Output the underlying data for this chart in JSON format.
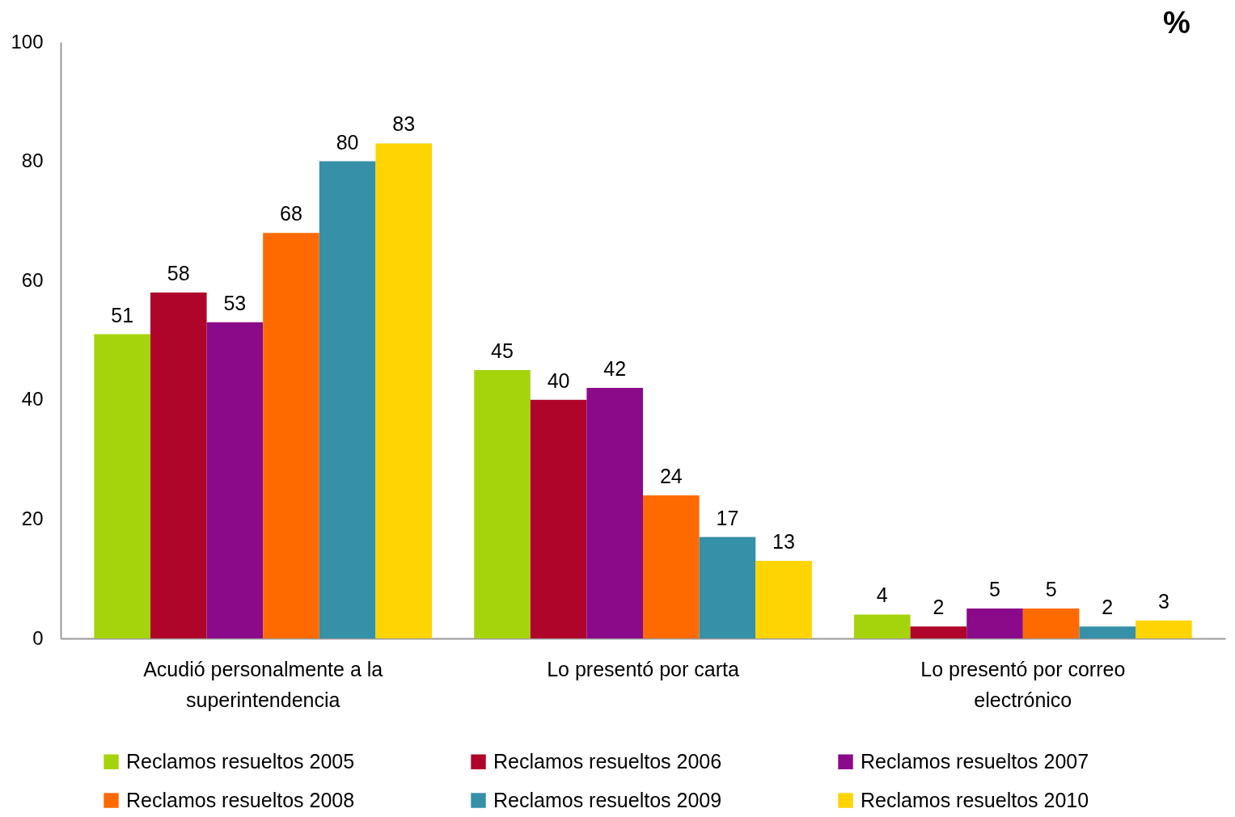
{
  "chart_data": {
    "type": "bar",
    "categories": [
      "Acudió personalmente a la superintendencia",
      "Lo presentó por carta",
      "Lo presentó por correo electrónico"
    ],
    "series": [
      {
        "name": "Reclamos resueltos 2005",
        "color": "#a6d40c",
        "values": [
          51,
          45,
          4
        ]
      },
      {
        "name": "Reclamos resueltos 2006",
        "color": "#b0052a",
        "values": [
          58,
          40,
          2
        ]
      },
      {
        "name": "Reclamos resueltos 2007",
        "color": "#8a0a8a",
        "values": [
          53,
          42,
          5
        ]
      },
      {
        "name": "Reclamos resueltos 2008",
        "color": "#ff6a00",
        "values": [
          68,
          24,
          5
        ]
      },
      {
        "name": "Reclamos resueltos 2009",
        "color": "#3590a8",
        "values": [
          80,
          17,
          2
        ]
      },
      {
        "name": "Reclamos resueltos 2010",
        "color": "#ffd400",
        "values": [
          83,
          13,
          3
        ]
      }
    ],
    "ylim": [
      0,
      100
    ],
    "yticks": [
      0,
      20,
      40,
      60,
      80,
      100
    ],
    "data_labels": true,
    "legend": "bottom",
    "annotations": [
      "%"
    ]
  }
}
